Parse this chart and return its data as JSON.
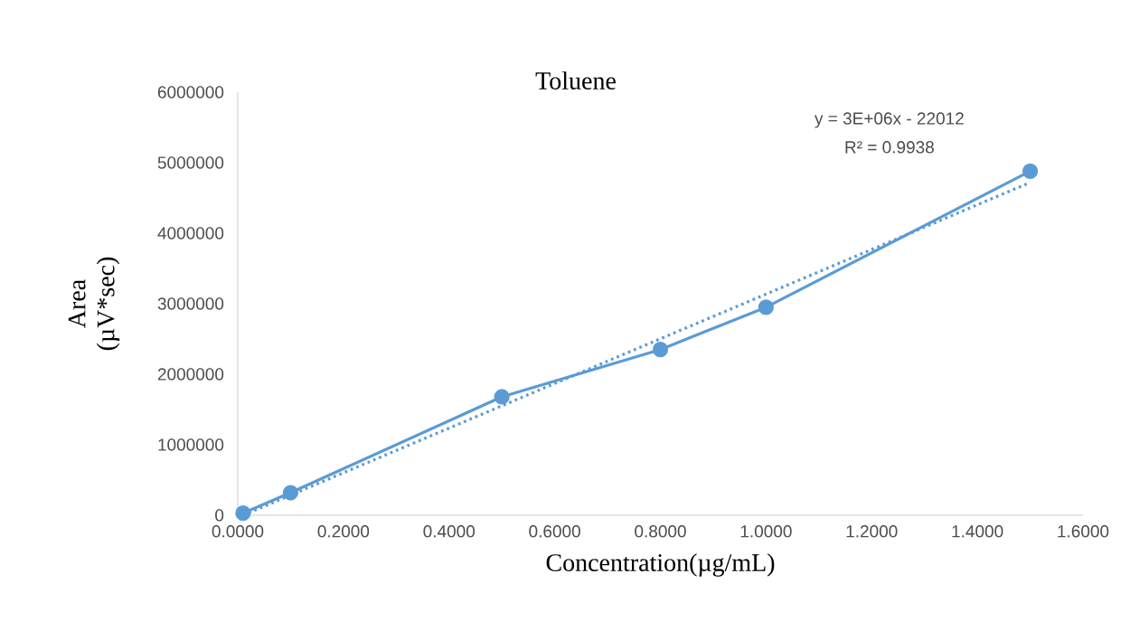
{
  "chart_data": {
    "type": "line",
    "title": "Toluene",
    "xlabel": "Concentration(µg/mL)",
    "ylabel": [
      "Area",
      "(µV*sec)"
    ],
    "annotations": [
      "y = 3E+06x - 22012",
      "R² = 0.9938"
    ],
    "xlim": [
      0,
      1.6
    ],
    "ylim": [
      0,
      6000000
    ],
    "xticks": [
      {
        "value": 0,
        "label": "0.0000"
      },
      {
        "value": 0.2,
        "label": "0.2000"
      },
      {
        "value": 0.4,
        "label": "0.4000"
      },
      {
        "value": 0.6,
        "label": "0.6000"
      },
      {
        "value": 0.8,
        "label": "0.8000"
      },
      {
        "value": 1.0,
        "label": "1.0000"
      },
      {
        "value": 1.2,
        "label": "1.2000"
      },
      {
        "value": 1.4,
        "label": "1.4000"
      },
      {
        "value": 1.6,
        "label": "1.6000"
      }
    ],
    "yticks": [
      0,
      1000000,
      2000000,
      3000000,
      4000000,
      5000000,
      6000000
    ],
    "series": [
      {
        "color": "#5b9bd5",
        "marker": "circle",
        "line_style": "solid",
        "x": [
          0.01,
          0.1,
          0.5,
          0.8,
          1.0,
          1.5
        ],
        "values": [
          30000,
          320000,
          1680000,
          2350000,
          2950000,
          4880000
        ]
      },
      {
        "color": "#5b9bd5",
        "marker": "none",
        "line_style": "dotted",
        "x": [
          0.01,
          1.5
        ],
        "values": [
          0,
          4720000
        ]
      }
    ]
  }
}
